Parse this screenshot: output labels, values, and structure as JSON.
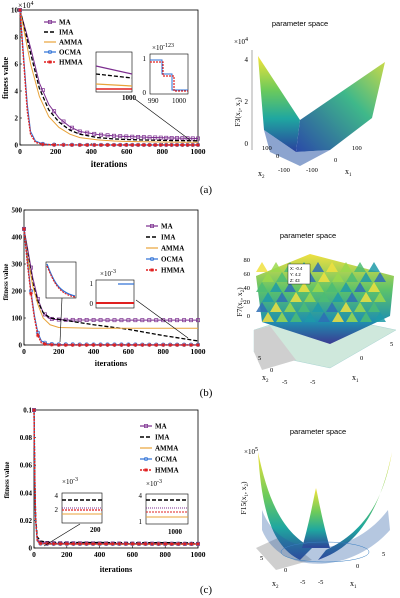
{
  "chart_data": [
    {
      "panel": "(a)",
      "type": "line",
      "ylabel": "fitness value",
      "xlabel": "iterations",
      "y_multiplier": "×10",
      "y_multiplier_exp": "4",
      "xlim": [
        0,
        1000
      ],
      "ylim": [
        0,
        10
      ],
      "xticks": [
        "0",
        "200",
        "400",
        "600",
        "800",
        "1000"
      ],
      "yticks": [
        "0",
        "2",
        "4",
        "6",
        "8",
        "10"
      ],
      "series": [
        {
          "name": "MA",
          "color": "#7b2d8e",
          "marker": "square",
          "values": [
            [
              0,
              10
            ],
            [
              10,
              7.2
            ],
            [
              30,
              4.6
            ],
            [
              60,
              3.0
            ],
            [
              100,
              2.0
            ],
            [
              150,
              1.35
            ],
            [
              200,
              1.0
            ],
            [
              300,
              0.78
            ],
            [
              400,
              0.68
            ],
            [
              500,
              0.62
            ],
            [
              600,
              0.58
            ],
            [
              700,
              0.55
            ],
            [
              800,
              0.52
            ],
            [
              900,
              0.5
            ],
            [
              1000,
              0.48
            ]
          ]
        },
        {
          "name": "IMA",
          "color": "#000000",
          "marker": "dash",
          "values": [
            [
              0,
              10
            ],
            [
              10,
              6.8
            ],
            [
              30,
              4.2
            ],
            [
              60,
              2.6
            ],
            [
              100,
              1.7
            ],
            [
              150,
              1.1
            ],
            [
              200,
              0.8
            ],
            [
              300,
              0.55
            ],
            [
              400,
              0.45
            ],
            [
              500,
              0.4
            ],
            [
              600,
              0.37
            ],
            [
              700,
              0.35
            ],
            [
              800,
              0.33
            ],
            [
              900,
              0.32
            ],
            [
              1000,
              0.31
            ]
          ]
        },
        {
          "name": "AMMA",
          "color": "#e8a33a",
          "marker": "none",
          "values": [
            [
              0,
              10
            ],
            [
              10,
              6.0
            ],
            [
              30,
              3.6
            ],
            [
              60,
              2.1
            ],
            [
              100,
              1.3
            ],
            [
              150,
              0.8
            ],
            [
              200,
              0.55
            ],
            [
              300,
              0.38
            ],
            [
              400,
              0.3
            ],
            [
              500,
              0.26
            ],
            [
              600,
              0.24
            ],
            [
              700,
              0.22
            ],
            [
              800,
              0.21
            ],
            [
              900,
              0.2
            ],
            [
              1000,
              0.2
            ]
          ]
        },
        {
          "name": "OCMA",
          "color": "#2b6fd6",
          "marker": "circle",
          "values": [
            [
              0,
              10
            ],
            [
              5,
              3.0
            ],
            [
              10,
              1.0
            ],
            [
              20,
              0.3
            ],
            [
              40,
              0.08
            ],
            [
              80,
              0.02
            ],
            [
              200,
              0.01
            ],
            [
              1000,
              0.01
            ]
          ]
        },
        {
          "name": "HMMA",
          "color": "#e02020",
          "marker": "star",
          "values": [
            [
              0,
              10
            ],
            [
              5,
              2.5
            ],
            [
              10,
              0.8
            ],
            [
              20,
              0.2
            ],
            [
              40,
              0.05
            ],
            [
              80,
              0.01
            ],
            [
              200,
              0.0
            ],
            [
              1000,
              0.0
            ]
          ]
        }
      ],
      "inset_left": {
        "xlabel": "1000"
      },
      "inset_right": {
        "y_multiplier": "×10",
        "y_multiplier_exp": "-123",
        "ytick_top": "1",
        "ytick_bottom": "0",
        "xtick_left": "990",
        "xtick_right": "1000"
      },
      "surface": {
        "title": "parameter space",
        "zlabel": "F3(x",
        "zlabel_tail": ", x",
        "z_multiplier": "×10",
        "z_multiplier_exp": "4",
        "zticks": [
          "0",
          "2",
          "4"
        ],
        "xticks_left": [
          "100",
          "0",
          "-100"
        ],
        "xticks_right": [
          "-100",
          "0",
          "100"
        ],
        "x_left": "x",
        "x_right": "x",
        "colormap": [
          "#3b2f8f",
          "#2a78c2",
          "#1fa7a0",
          "#6dcb5a",
          "#f5e33a"
        ]
      }
    },
    {
      "panel": "(b)",
      "type": "line",
      "ylabel": "fitness value",
      "xlabel": "iterations",
      "xlim": [
        0,
        1000
      ],
      "ylim": [
        0,
        500
      ],
      "xticks": [
        "0",
        "200",
        "400",
        "600",
        "800",
        "1000"
      ],
      "yticks": [
        "0",
        "100",
        "200",
        "300",
        "400",
        "500"
      ],
      "series": [
        {
          "name": "MA",
          "color": "#7b2d8e",
          "marker": "square",
          "values": [
            [
              0,
              430
            ],
            [
              20,
              360
            ],
            [
              50,
              250
            ],
            [
              80,
              170
            ],
            [
              110,
              120
            ],
            [
              140,
              100
            ],
            [
              170,
              95
            ],
            [
              250,
              93
            ],
            [
              500,
              92
            ],
            [
              1000,
              92
            ]
          ]
        },
        {
          "name": "IMA",
          "color": "#000000",
          "marker": "dash",
          "values": [
            [
              0,
              430
            ],
            [
              20,
              340
            ],
            [
              50,
              230
            ],
            [
              80,
              160
            ],
            [
              110,
              120
            ],
            [
              150,
              100
            ],
            [
              250,
              90
            ],
            [
              400,
              75
            ],
            [
              600,
              58
            ],
            [
              800,
              35
            ],
            [
              1000,
              15
            ]
          ]
        },
        {
          "name": "AMMA",
          "color": "#e8a33a",
          "marker": "none",
          "values": [
            [
              0,
              430
            ],
            [
              20,
              330
            ],
            [
              50,
              220
            ],
            [
              80,
              150
            ],
            [
              110,
              100
            ],
            [
              150,
              75
            ],
            [
              200,
              65
            ],
            [
              400,
              62
            ],
            [
              1000,
              62
            ]
          ]
        },
        {
          "name": "OCMA",
          "color": "#2b6fd6",
          "marker": "circle",
          "values": [
            [
              0,
              430
            ],
            [
              20,
              310
            ],
            [
              40,
              200
            ],
            [
              60,
              110
            ],
            [
              80,
              45
            ],
            [
              100,
              15
            ],
            [
              130,
              5
            ],
            [
              200,
              2
            ],
            [
              1000,
              1
            ]
          ]
        },
        {
          "name": "HMMA",
          "color": "#e02020",
          "marker": "star",
          "values": [
            [
              0,
              430
            ],
            [
              20,
              300
            ],
            [
              40,
              190
            ],
            [
              60,
              100
            ],
            [
              80,
              35
            ],
            [
              100,
              8
            ],
            [
              130,
              2
            ],
            [
              200,
              0
            ],
            [
              1000,
              0
            ]
          ]
        }
      ],
      "inset_right": {
        "y_multiplier": "×10",
        "y_multiplier_exp": "-3",
        "ytick_top": "1",
        "ytick_bottom": "0"
      },
      "surface": {
        "title": "parameter space",
        "zlabel": "F7(x",
        "zlabel_tail": ", x",
        "zticks": [
          "0",
          "20",
          "40",
          "60",
          "80"
        ],
        "xticks_left": [
          "5",
          "0",
          "-5"
        ],
        "xticks_right": [
          "-5",
          "0",
          "5"
        ],
        "x_left": "x",
        "x_right": "x",
        "tooltip": [
          "X: -0.4",
          "Y: 4.2",
          "Z: 43"
        ]
      }
    },
    {
      "panel": "(c)",
      "type": "line",
      "ylabel": "fitness value",
      "xlabel": "iterations",
      "xlim": [
        0,
        1000
      ],
      "ylim": [
        0,
        0.1
      ],
      "xticks": [
        "0",
        "200",
        "400",
        "600",
        "800",
        "1000"
      ],
      "yticks": [
        "0",
        "0.02",
        "0.04",
        "0.06",
        "0.08",
        "0.1"
      ],
      "series": [
        {
          "name": "MA",
          "color": "#7b2d8e",
          "marker": "square",
          "values": [
            [
              0,
              0.1
            ],
            [
              5,
              0.05
            ],
            [
              10,
              0.02
            ],
            [
              20,
              0.006
            ],
            [
              40,
              0.004
            ],
            [
              100,
              0.0035
            ],
            [
              1000,
              0.003
            ]
          ]
        },
        {
          "name": "IMA",
          "color": "#000000",
          "marker": "dash",
          "values": [
            [
              0,
              0.1
            ],
            [
              5,
              0.05
            ],
            [
              10,
              0.022
            ],
            [
              20,
              0.008
            ],
            [
              40,
              0.005
            ],
            [
              100,
              0.004
            ],
            [
              1000,
              0.0038
            ]
          ]
        },
        {
          "name": "AMMA",
          "color": "#e8a33a",
          "marker": "none",
          "values": [
            [
              0,
              0.1
            ],
            [
              5,
              0.05
            ],
            [
              10,
              0.02
            ],
            [
              20,
              0.005
            ],
            [
              40,
              0.003
            ],
            [
              100,
              0.0026
            ],
            [
              1000,
              0.0025
            ]
          ]
        },
        {
          "name": "OCMA",
          "color": "#2b6fd6",
          "marker": "circle",
          "values": [
            [
              0,
              0.1
            ],
            [
              5,
              0.05
            ],
            [
              10,
              0.02
            ],
            [
              20,
              0.005
            ],
            [
              40,
              0.0032
            ],
            [
              100,
              0.003
            ],
            [
              1000,
              0.003
            ]
          ]
        },
        {
          "name": "HMMA",
          "color": "#e02020",
          "marker": "star",
          "values": [
            [
              0,
              0.1
            ],
            [
              5,
              0.05
            ],
            [
              10,
              0.02
            ],
            [
              20,
              0.005
            ],
            [
              40,
              0.0033
            ],
            [
              100,
              0.0031
            ],
            [
              1000,
              0.003
            ]
          ]
        }
      ],
      "inset_left": {
        "y_multiplier": "×10",
        "y_multiplier_exp": "-3",
        "ytick_top": "4",
        "ytick_mid": "2",
        "xlabel": "200"
      },
      "inset_right": {
        "y_multiplier": "×10",
        "y_multiplier_exp": "-3",
        "ytick_top": "4",
        "ytick_bottom": "1",
        "xlabel": "1000"
      },
      "surface": {
        "title": "parameter space",
        "zlabel": "F15(x",
        "zlabel_tail": ", x",
        "z_multiplier": "×10",
        "z_multiplier_exp": "5",
        "xticks_left": [
          "5",
          "0",
          "-5"
        ],
        "xticks_right": [
          "-5",
          "0",
          "5"
        ],
        "x_left": "x",
        "x_right": "x"
      }
    }
  ]
}
